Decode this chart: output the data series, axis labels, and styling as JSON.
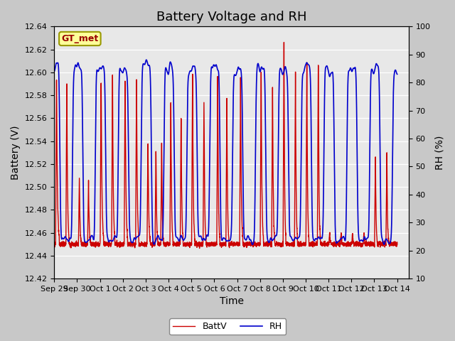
{
  "title": "Battery Voltage and RH",
  "xlabel": "Time",
  "ylabel_left": "Battery (V)",
  "ylabel_right": "RH (%)",
  "ylim_left": [
    12.42,
    12.64
  ],
  "ylim_right": [
    10,
    100
  ],
  "yticks_left": [
    12.42,
    12.44,
    12.46,
    12.48,
    12.5,
    12.52,
    12.54,
    12.56,
    12.58,
    12.6,
    12.62,
    12.64
  ],
  "yticks_right": [
    10,
    20,
    30,
    40,
    50,
    60,
    70,
    80,
    90,
    100
  ],
  "fig_bg_color": "#c8c8c8",
  "plot_bg_color": "#e8e8e8",
  "grid_color": "#ffffff",
  "batt_color": "#cc0000",
  "rh_color": "#0000cc",
  "legend_batt": "BattV",
  "legend_rh": "RH",
  "station_label": "GT_met",
  "station_label_bg": "#ffff99",
  "station_label_border": "#999900",
  "title_fontsize": 13,
  "label_fontsize": 10,
  "tick_fontsize": 8,
  "legend_fontsize": 9,
  "x_tick_labels": [
    "Sep 29",
    "Sep 30",
    "Oct 1",
    "Oct 2",
    "Oct 3",
    "Oct 4",
    "Oct 5",
    "Oct 6",
    "Oct 7",
    "Oct 8",
    "Oct 9",
    "Oct 10",
    "Oct 11",
    "Oct 12",
    "Oct 13",
    "Oct 14"
  ]
}
